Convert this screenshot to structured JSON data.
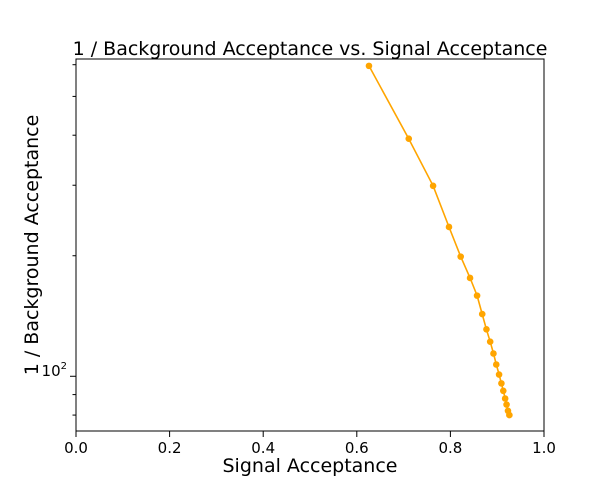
{
  "chart_data": {
    "type": "line",
    "title": "1 / Background Acceptance vs. Signal Acceptance",
    "xlabel": "Signal Acceptance",
    "ylabel": "1 / Background Acceptance",
    "xlim": [
      0.0,
      1.0
    ],
    "ylim": [
      73,
      620
    ],
    "yscale": "log",
    "grid": false,
    "legend": "none",
    "color": "#FFA500",
    "marker": "circle",
    "x_ticks": [
      "0.0",
      "0.2",
      "0.4",
      "0.6",
      "0.8",
      "1.0"
    ],
    "x_tick_values": [
      0.0,
      0.2,
      0.4,
      0.6,
      0.8,
      1.0
    ],
    "y_major_tick_base": "10",
    "y_major_tick_exponent": "2",
    "y_major_tick_value": 100,
    "y_minor_tick_values": [
      80,
      90,
      200,
      300,
      400,
      500,
      600
    ],
    "series": [
      {
        "x": [
          0.626,
          0.711,
          0.763,
          0.797,
          0.822,
          0.842,
          0.857,
          0.868,
          0.877,
          0.885,
          0.892,
          0.898,
          0.904,
          0.909,
          0.913,
          0.917,
          0.92,
          0.923,
          0.926
        ],
        "y": [
          596,
          392,
          299,
          236,
          199,
          176,
          159,
          143,
          131,
          122,
          114,
          107,
          101,
          96,
          92,
          88,
          85,
          82,
          80
        ]
      }
    ]
  }
}
